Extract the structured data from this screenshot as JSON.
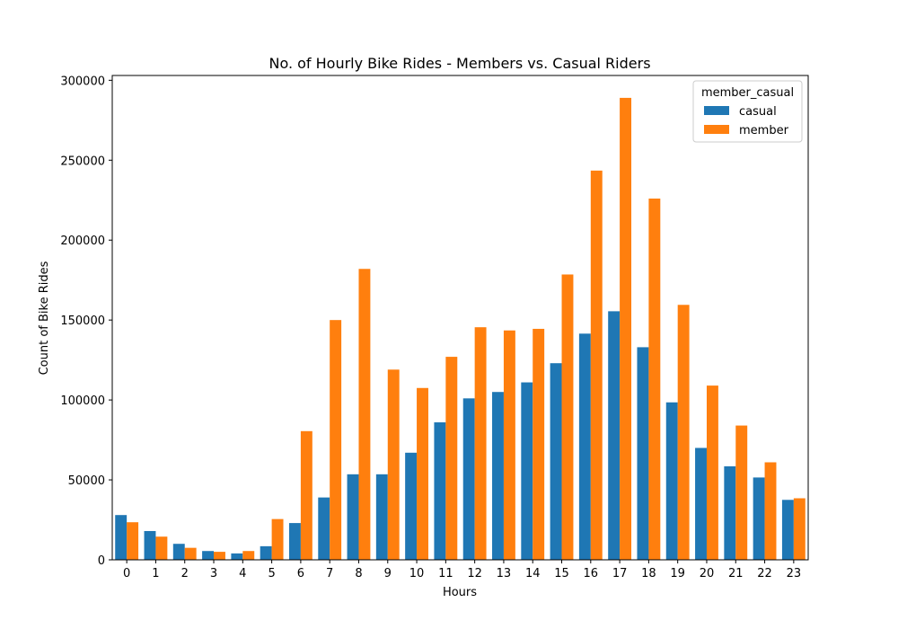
{
  "chart_data": {
    "type": "bar",
    "title": "No. of Hourly Bike Rides - Members vs. Casual Riders",
    "xlabel": "Hours",
    "ylabel": "Count of Bike Rides",
    "ylim": [
      0,
      303000
    ],
    "yticks": [
      0,
      50000,
      100000,
      150000,
      200000,
      250000,
      300000
    ],
    "categories": [
      "0",
      "1",
      "2",
      "3",
      "4",
      "5",
      "6",
      "7",
      "8",
      "9",
      "10",
      "11",
      "12",
      "13",
      "14",
      "15",
      "16",
      "17",
      "18",
      "19",
      "20",
      "21",
      "22",
      "23"
    ],
    "legend": {
      "title": "member_casual",
      "position": "top-right"
    },
    "series": [
      {
        "name": "casual",
        "color": "#1f77b4",
        "values": [
          28000,
          18000,
          10000,
          5500,
          4000,
          8500,
          23000,
          39000,
          53500,
          53500,
          67000,
          86000,
          101000,
          105000,
          111000,
          123000,
          141500,
          155500,
          133000,
          98500,
          70000,
          58500,
          51500,
          37500
        ]
      },
      {
        "name": "member",
        "color": "#ff7f0e",
        "values": [
          23500,
          14500,
          7500,
          5000,
          5500,
          25500,
          80500,
          150000,
          182000,
          119000,
          107500,
          127000,
          145500,
          143500,
          144500,
          178500,
          243500,
          289000,
          226000,
          159500,
          109000,
          84000,
          61000,
          38500
        ]
      }
    ]
  }
}
